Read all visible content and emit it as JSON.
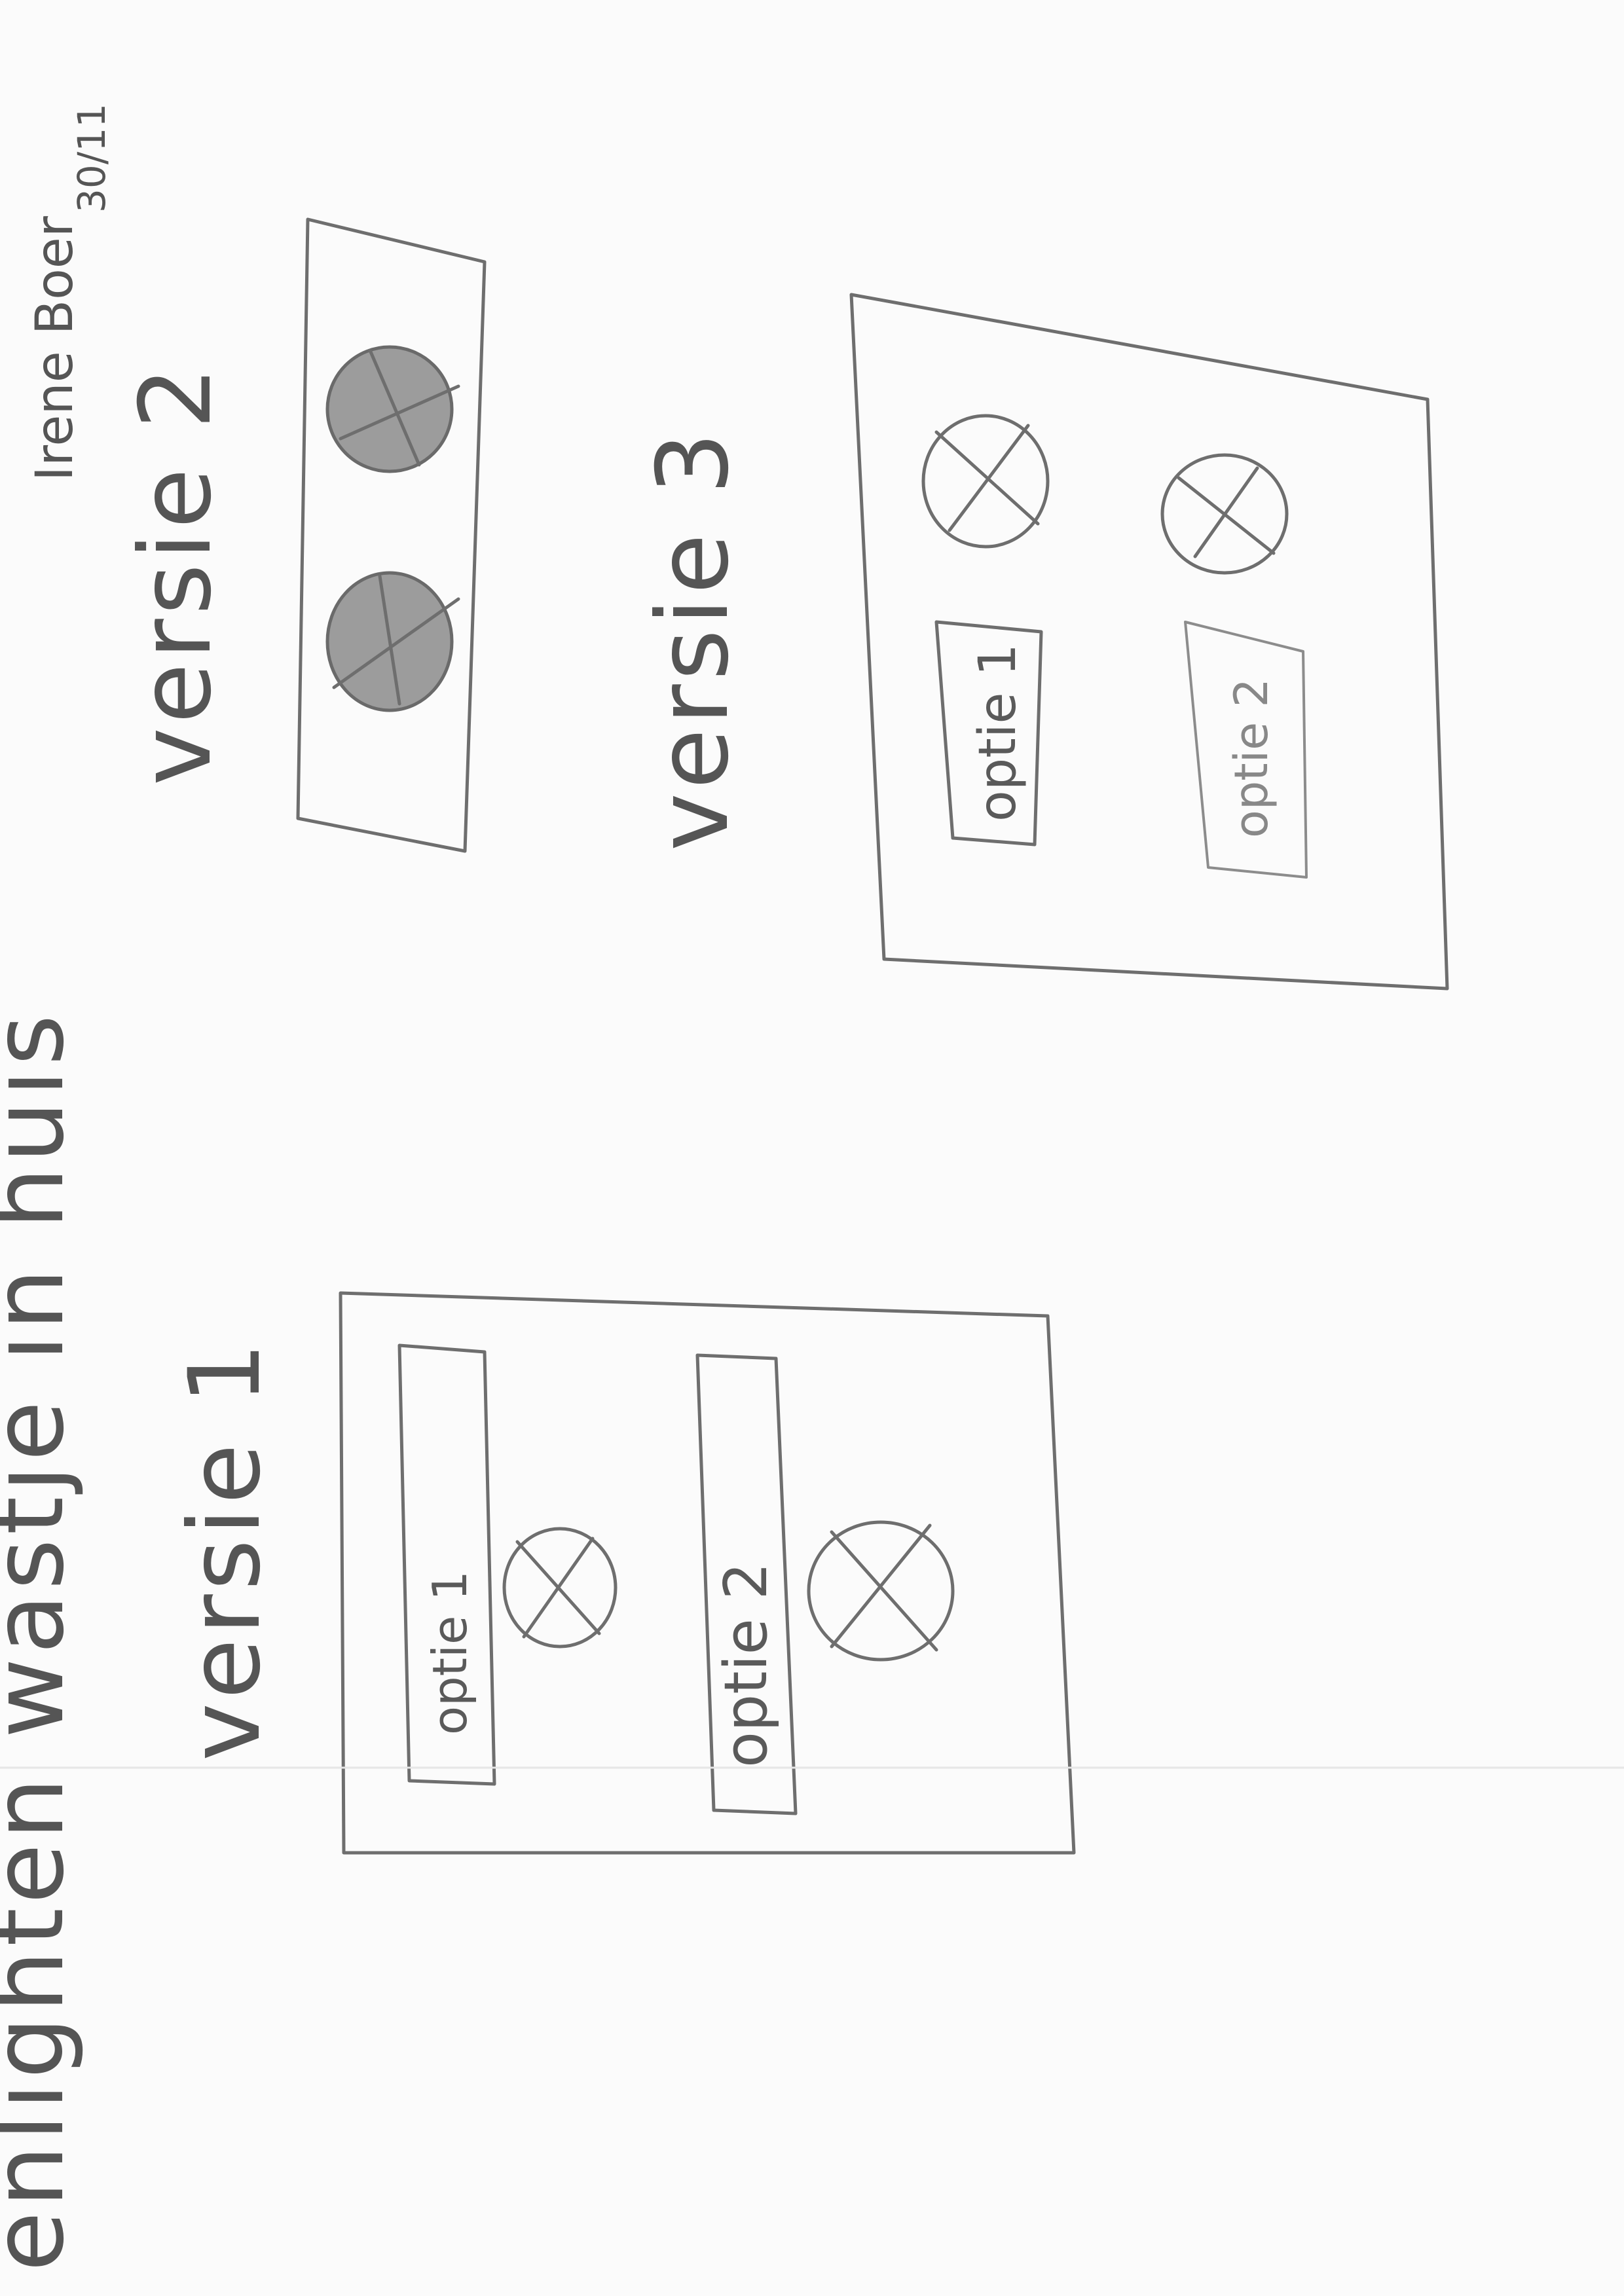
{
  "title": "enlighten wastje in huis",
  "signature": {
    "name": "Irene Boer",
    "date": "30/11"
  },
  "versions": [
    {
      "label": "versie 1",
      "rows": [
        {
          "button_label": "optie 1",
          "icon": "circle-x-icon"
        },
        {
          "button_label": "optie 2",
          "icon": "circle-x-icon"
        }
      ]
    },
    {
      "label": "versie 2",
      "rows": [
        {
          "icon": "filled-circle-x-icon"
        },
        {
          "icon": "filled-circle-x-icon"
        }
      ]
    },
    {
      "label": "versie 3",
      "rows": [
        {
          "button_label": "optie 1",
          "icon": "circle-x-icon"
        },
        {
          "button_label": "optie 2",
          "icon": "circle-x-icon"
        }
      ]
    }
  ]
}
